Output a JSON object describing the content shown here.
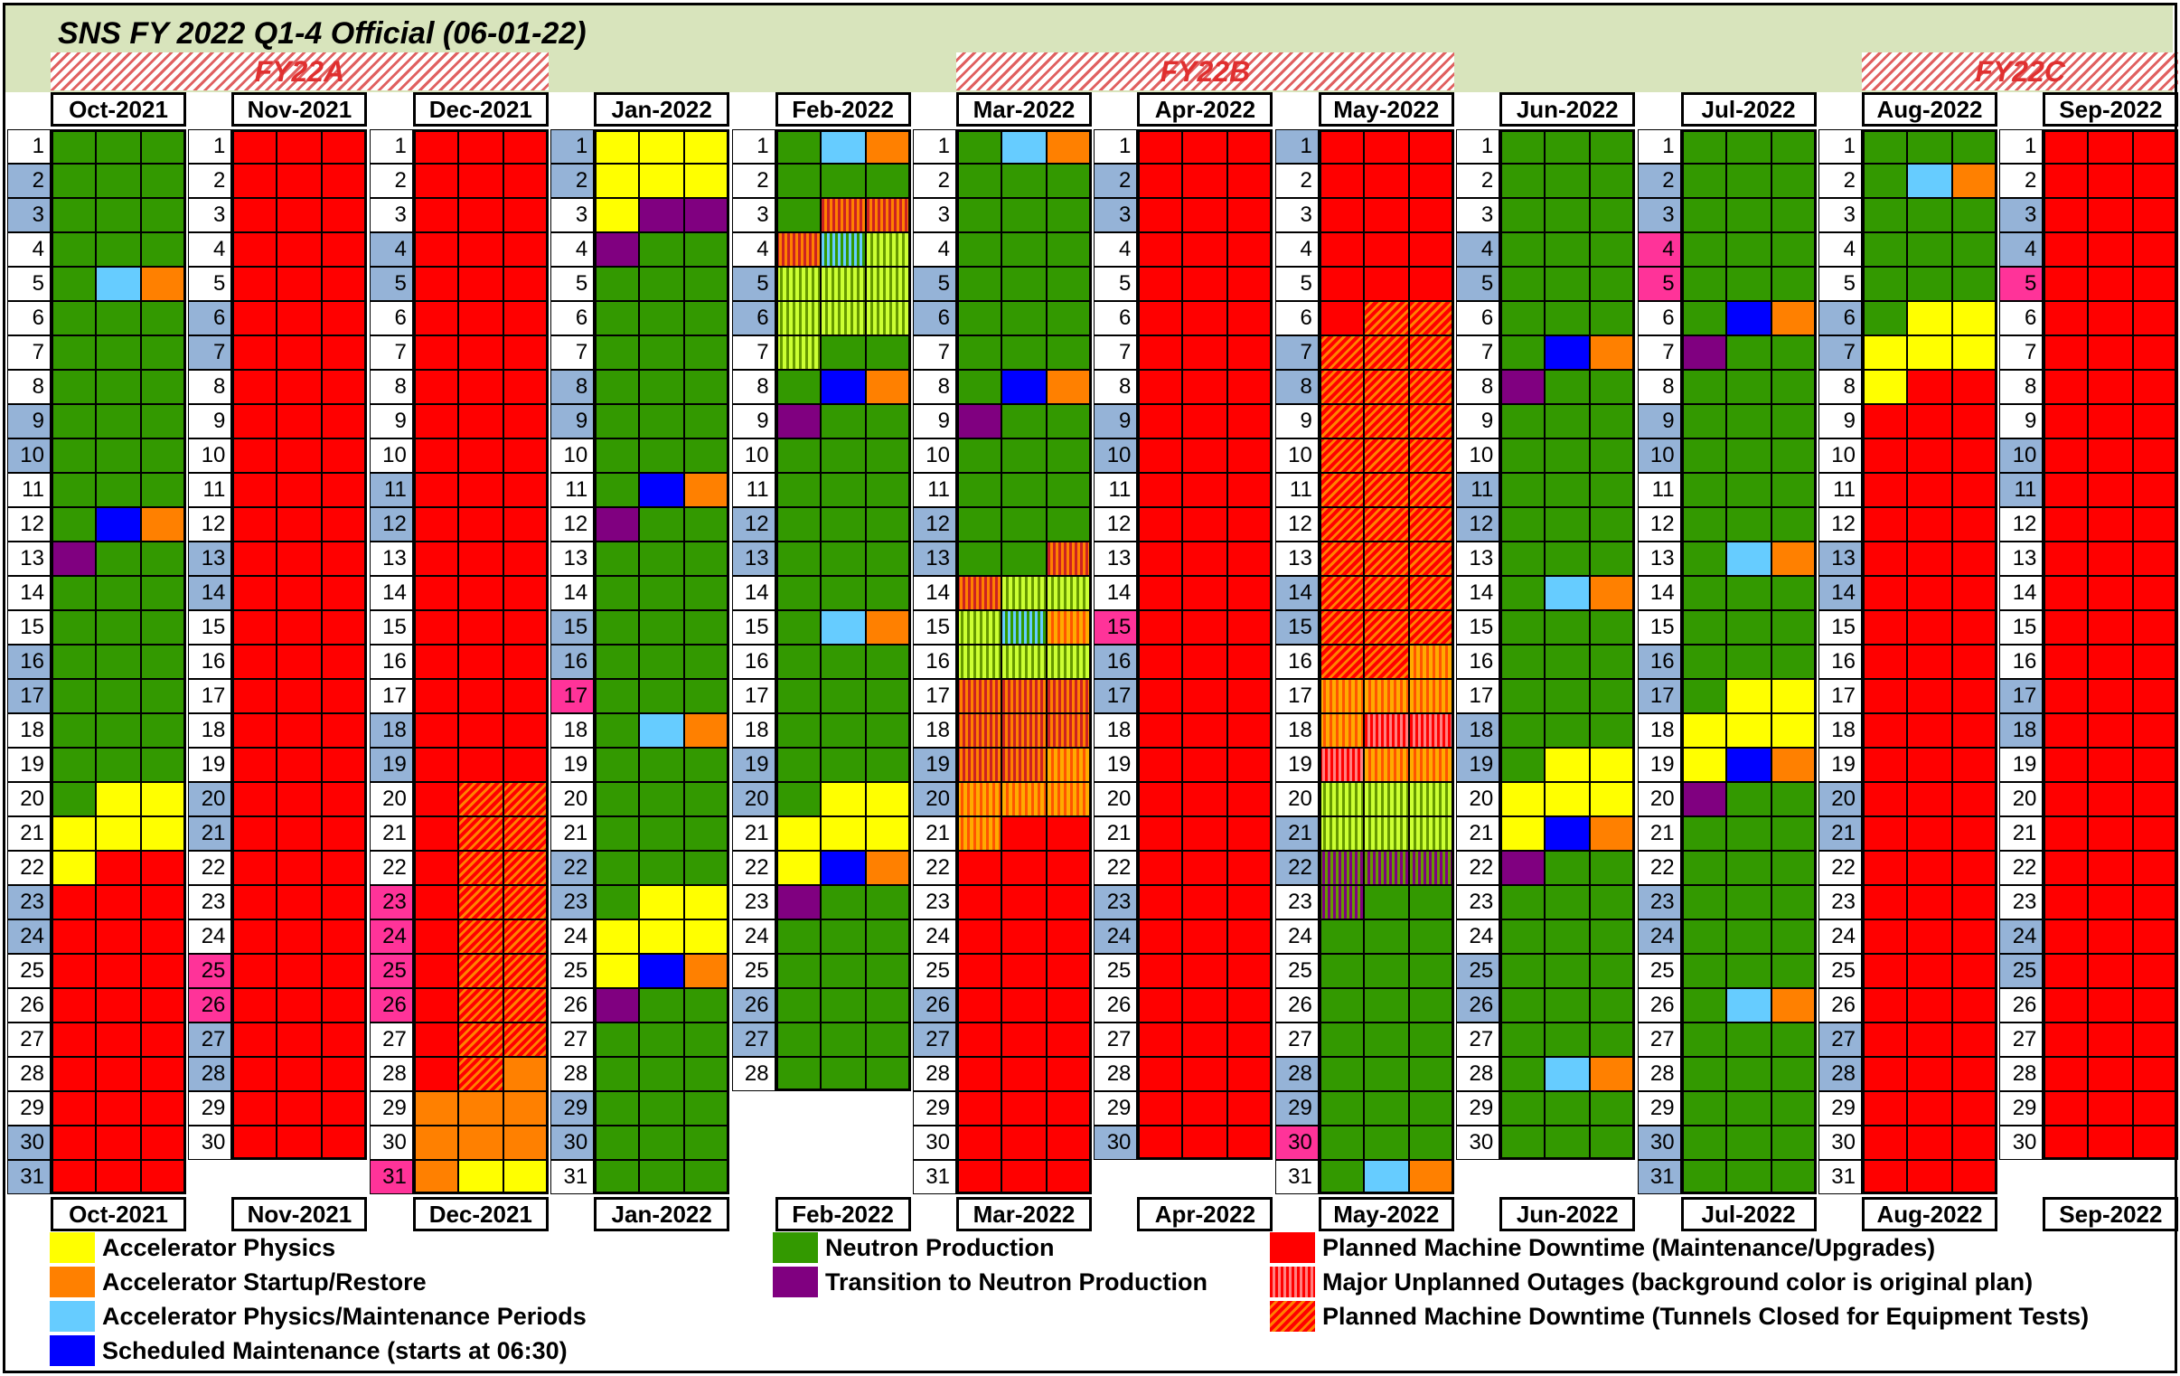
{
  "title": "SNS FY 2022 Q1-4 Official (06-01-22)",
  "fiscal_periods": [
    {
      "label": "FY22A",
      "from_month": 0,
      "to_month": 2
    },
    {
      "label": "FY22B",
      "from_month": 5,
      "to_month": 7
    },
    {
      "label": "FY22C",
      "from_month": 10,
      "to_month": 11
    }
  ],
  "months": [
    {
      "name": "Oct-2021",
      "days": 31,
      "cells": "GGG GGG GGG GGG GLO GGG GGG GGG GGG GGG GGG GBO PGG GGG GGG GGG GGG GGG GGG GYY YYY YRR RRR RRR RRR RRR RRR RRR RRR RRR RRR",
      "weekend": [
        2,
        3,
        9,
        10,
        16,
        17,
        23,
        24,
        30,
        31
      ],
      "holiday": []
    },
    {
      "name": "Nov-2021",
      "days": 30,
      "cells": "RRR RRR RRR RRR RRR RRR RRR RRR RRR RRR RRR RRR RRR RRR RRR RRR RRR RRR RRR RRR RRR RRR RRR RRR RRR RRR RRR RRR RRR RRR",
      "weekend": [
        6,
        7,
        13,
        14,
        20,
        21,
        27,
        28
      ],
      "holiday": [
        25,
        26
      ]
    },
    {
      "name": "Dec-2021",
      "days": 31,
      "cells": "RRR RRR RRR RRR RRR RRR RRR RRR RRR RRR RRR RRR RRR RRR RRR RRR RRR RRR RRR RTT RTT RTT RTT RTT RTT RTT RTT RTO OOO OOO OYY",
      "weekend": [
        4,
        5,
        11,
        12,
        18,
        19
      ],
      "holiday": [
        23,
        24,
        25,
        26,
        31
      ]
    },
    {
      "name": "Jan-2022",
      "days": 31,
      "cells": "YYY YYY YPP PGG GGG GGG GGG GGG GGG GGG GBO PGG GGG GGG GGG GGG GGG GLO GGG GGG GGG GGG GYY YYY YBO PGG GGG GGG GGG GGG GGG",
      "weekend": [
        1,
        2,
        8,
        9,
        15,
        16,
        22,
        23,
        29,
        30
      ],
      "holiday": [
        17
      ]
    },
    {
      "name": "Feb-2022",
      "days": 28,
      "cells": "GLO GGG Guu uqv vvv vvv vGG GBO PGG GGG GGG GGG GGG GGG GLO GGG GGG GGG GGG GYY YYY YBO PGG GGG GGG GGG GGG GGG",
      "weekend": [
        5,
        6,
        12,
        13,
        19,
        20,
        26,
        27
      ],
      "holiday": []
    },
    {
      "name": "Mar-2022",
      "days": 31,
      "cells": "GLO GGG GGG GGG GGG GGG GGG GBO PGG GGG GGG GGG GGu uvv vqx vvv uuu uuu uux xxx xRR RRR RRR RRR RRR RRR RRR RRR RRR RRR RRR",
      "weekend": [
        5,
        6,
        12,
        13,
        19,
        20,
        26,
        27
      ],
      "holiday": []
    },
    {
      "name": "Apr-2022",
      "days": 30,
      "cells": "RRR RRR RRR RRR RRR RRR RRR RRR RRR RRR RRR RRR RRR RRR RRR RRR RRR RRR RRR RRR RRR RRR RRR RRR RRR RRR RRR RRR RRR RRR",
      "weekend": [
        2,
        3,
        9,
        10,
        16,
        17,
        23,
        24,
        30
      ],
      "holiday": [
        15
      ]
    },
    {
      "name": "May-2022",
      "days": 31,
      "cells": "RRR RRR RRR RRR RRR RTT TTT TTT TTT TTT TTT TTT TTT TTT TTT TTx xxx xww wxx vvv vvv zzz zGG GGG GGG GGG GGG GGG GGG GGG GLO",
      "weekend": [
        1,
        7,
        8,
        14,
        15,
        21,
        22,
        28,
        29
      ],
      "holiday": [
        30
      ]
    },
    {
      "name": "Jun-2022",
      "days": 30,
      "cells": "GGG GGG GGG GGG GGG GGG GBO PGG GGG GGG GGG GGG GGG GLO GGG GGG GGG GGG GYY YYY YBO PGG GGG GGG GGG GGG GGG GLO GGG GGG",
      "weekend": [
        4,
        5,
        11,
        12,
        18,
        19,
        25,
        26
      ],
      "holiday": []
    },
    {
      "name": "Jul-2022",
      "days": 31,
      "cells": "GGG GGG GGG GGG GGG GBO PGG GGG GGG GGG GGG GGG GLO GGG GGG GGG GYY YYY YBO PGG GGG GGG GGG GGG GGG GLO GGG GGG GGG GGG GGG",
      "weekend": [
        2,
        3,
        9,
        10,
        16,
        17,
        23,
        24,
        30,
        31
      ],
      "holiday": [
        4,
        5
      ]
    },
    {
      "name": "Aug-2022",
      "days": 31,
      "cells": "GGG GLO GGG GGG GGG GYY YYY YRR RRR RRR RRR RRR RRR RRR RRR RRR RRR RRR RRR RRR RRR RRR RRR RRR RRR RRR RRR RRR RRR RRR RRR",
      "weekend": [
        6,
        7,
        13,
        14,
        20,
        21,
        27,
        28
      ],
      "holiday": []
    },
    {
      "name": "Sep-2022",
      "days": 30,
      "cells": "RRR RRR RRR RRR RRR RRR RRR RRR RRR RRR RRR RRR RRR RRR RRR RRR RRR RRR RRR RRR RRR RRR RRR RRR RRR RRR RRR RRR RRR RRR",
      "weekend": [
        3,
        4,
        10,
        11,
        17,
        18,
        24,
        25
      ],
      "holiday": [
        5
      ]
    }
  ],
  "legend": [
    {
      "code": "Y",
      "label": "Accelerator Physics"
    },
    {
      "code": "O",
      "label": "Accelerator Startup/Restore"
    },
    {
      "code": "L",
      "label": "Accelerator Physics/Maintenance Periods"
    },
    {
      "code": "B",
      "label": "Scheduled Maintenance (starts at 06:30)"
    },
    {
      "code": "G",
      "label": "Neutron Production"
    },
    {
      "code": "P",
      "label": "Transition to Neutron Production"
    },
    {
      "code": "R",
      "label": "Planned Machine Downtime (Maintenance/Upgrades)"
    },
    {
      "code": "w",
      "label": "Major Unplanned Outages (background color is original plan)"
    },
    {
      "code": "T",
      "label": "Planned Machine Downtime (Tunnels Closed for Equipment Tests)"
    }
  ]
}
